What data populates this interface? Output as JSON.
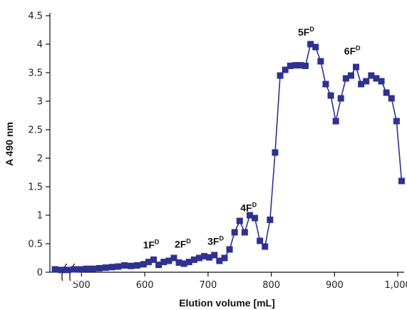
{
  "chart_data": {
    "type": "scatter",
    "mode": "line+markers",
    "xlabel": "Elution volume [mL]",
    "ylabel": "A 490 nm",
    "xlim": [
      450,
      1010
    ],
    "ylim": [
      0,
      4.5
    ],
    "axis_break_near_x": 480,
    "xticks": [
      500,
      600,
      700,
      800,
      900,
      1000
    ],
    "xtick_labels": [
      "500",
      "600",
      "700",
      "800",
      "900",
      "1,000"
    ],
    "yticks": [
      0,
      0.5,
      1,
      1.5,
      2,
      2.5,
      3,
      3.5,
      4,
      4.5
    ],
    "ytick_labels": [
      "0",
      "0.5",
      "1",
      "1.5",
      "2",
      "2.5",
      "3",
      "3.5",
      "4",
      "4.5"
    ],
    "grid": false,
    "color": "#2e3190",
    "series": [
      {
        "x": [
          458,
          468,
          478,
          488,
          498,
          508,
          518,
          528,
          538,
          548,
          558,
          568,
          578,
          588,
          598,
          606,
          614,
          622,
          630,
          638,
          646,
          654,
          662,
          670,
          678,
          686,
          694,
          702,
          710,
          718,
          726,
          734,
          742,
          750,
          758,
          766,
          774,
          782,
          790,
          798,
          806,
          814,
          822,
          830,
          838,
          846,
          854,
          862,
          870,
          878,
          886,
          894,
          902,
          910,
          918,
          926,
          934,
          942,
          950,
          958,
          966,
          974,
          982,
          990,
          998,
          1006
        ],
        "values": [
          0.05,
          0.04,
          0.04,
          0.05,
          0.05,
          0.06,
          0.06,
          0.07,
          0.08,
          0.09,
          0.1,
          0.12,
          0.11,
          0.12,
          0.14,
          0.18,
          0.22,
          0.13,
          0.18,
          0.2,
          0.25,
          0.17,
          0.15,
          0.18,
          0.22,
          0.25,
          0.28,
          0.26,
          0.3,
          0.2,
          0.25,
          0.4,
          0.7,
          0.9,
          0.7,
          1.0,
          0.95,
          0.55,
          0.45,
          0.92,
          2.1,
          3.45,
          3.55,
          3.62,
          3.63,
          3.63,
          3.62,
          4.0,
          3.95,
          3.7,
          3.3,
          3.1,
          2.65,
          3.05,
          3.4,
          3.45,
          3.6,
          3.3,
          3.35,
          3.45,
          3.4,
          3.35,
          3.15,
          3.05,
          2.65,
          1.6
        ]
      }
    ],
    "annotations": [
      {
        "label": "1F",
        "sup": "D",
        "x": 610,
        "y": 0.42
      },
      {
        "label": "2F",
        "sup": "D",
        "x": 660,
        "y": 0.43
      },
      {
        "label": "3F",
        "sup": "D",
        "x": 712,
        "y": 0.48
      },
      {
        "label": "4F",
        "sup": "D",
        "x": 764,
        "y": 1.07
      },
      {
        "label": "5F",
        "sup": "D",
        "x": 855,
        "y": 4.15
      },
      {
        "label": "6F",
        "sup": "D",
        "x": 928,
        "y": 3.82
      }
    ]
  }
}
